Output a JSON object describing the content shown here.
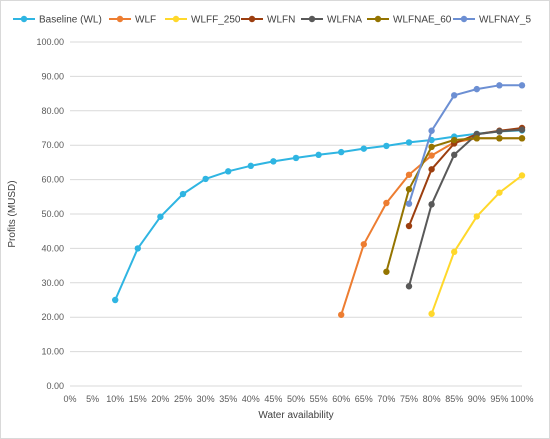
{
  "chart_data": {
    "type": "line",
    "title": "",
    "xlabel": "Water availability",
    "ylabel": "Profits (MUSD)",
    "legend_position": "top",
    "grid": "horizontal",
    "categories": [
      "0%",
      "5%",
      "10%",
      "15%",
      "20%",
      "25%",
      "30%",
      "35%",
      "40%",
      "45%",
      "50%",
      "55%",
      "60%",
      "65%",
      "70%",
      "75%",
      "80%",
      "85%",
      "90%",
      "95%",
      "100%"
    ],
    "ylim": [
      0,
      100
    ],
    "ytick_labels": [
      "0.00",
      "10.00",
      "20.00",
      "30.00",
      "40.00",
      "50.00",
      "60.00",
      "70.00",
      "80.00",
      "90.00",
      "100.00"
    ],
    "series": [
      {
        "name": "Baseline (WL)",
        "color": "#2fb5e2",
        "points": [
          [
            10,
            25.0
          ],
          [
            15,
            40.0
          ],
          [
            20,
            49.2
          ],
          [
            25,
            55.8
          ],
          [
            30,
            60.2
          ],
          [
            35,
            62.4
          ],
          [
            40,
            64.0
          ],
          [
            45,
            65.3
          ],
          [
            50,
            66.3
          ],
          [
            55,
            67.2
          ],
          [
            60,
            68.0
          ],
          [
            65,
            69.0
          ],
          [
            70,
            69.8
          ],
          [
            75,
            70.8
          ],
          [
            80,
            71.5
          ],
          [
            85,
            72.5
          ],
          [
            90,
            73.3
          ],
          [
            95,
            74.0
          ],
          [
            100,
            74.3
          ]
        ]
      },
      {
        "name": "WLF",
        "color": "#ed7d31",
        "points": [
          [
            60,
            20.7
          ],
          [
            65,
            41.2
          ],
          [
            70,
            53.2
          ],
          [
            75,
            61.4
          ],
          [
            80,
            67.0
          ],
          [
            85,
            70.8
          ],
          [
            90,
            72.0
          ],
          [
            95,
            72.0
          ],
          [
            100,
            72.0
          ]
        ]
      },
      {
        "name": "WLFF_250",
        "color": "#ffd82b",
        "points": [
          [
            80,
            21.0
          ],
          [
            85,
            39.0
          ],
          [
            90,
            49.3
          ],
          [
            95,
            56.2
          ],
          [
            100,
            61.2
          ]
        ]
      },
      {
        "name": "WLFN",
        "color": "#9c3e0f",
        "points": [
          [
            75,
            46.5
          ],
          [
            80,
            63.0
          ],
          [
            85,
            70.5
          ],
          [
            90,
            73.2
          ],
          [
            95,
            74.2
          ],
          [
            100,
            75.0
          ]
        ]
      },
      {
        "name": "WLFNA",
        "color": "#595959",
        "points": [
          [
            75,
            29.0
          ],
          [
            80,
            52.8
          ],
          [
            85,
            67.2
          ],
          [
            90,
            73.2
          ],
          [
            95,
            74.0
          ],
          [
            100,
            74.5
          ]
        ]
      },
      {
        "name": "WLFNAE_60",
        "color": "#947400",
        "points": [
          [
            70,
            33.2
          ],
          [
            75,
            57.2
          ],
          [
            80,
            69.5
          ],
          [
            85,
            71.5
          ],
          [
            90,
            72.0
          ],
          [
            95,
            72.0
          ],
          [
            100,
            72.0
          ]
        ]
      },
      {
        "name": "WLFNAY_5",
        "color": "#6c8fd3",
        "points": [
          [
            75,
            53.0
          ],
          [
            80,
            74.2
          ],
          [
            85,
            84.5
          ],
          [
            90,
            86.3
          ],
          [
            95,
            87.4
          ],
          [
            100,
            87.4
          ]
        ]
      }
    ]
  }
}
